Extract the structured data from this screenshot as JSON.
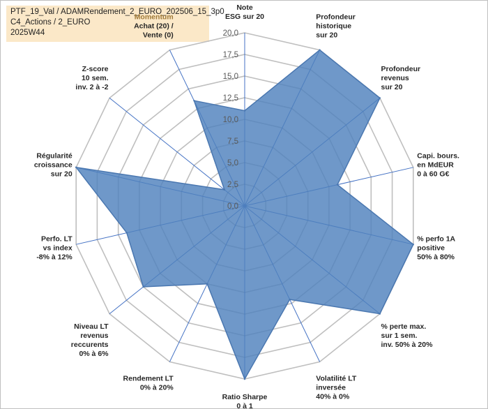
{
  "title_lines": [
    "PTF_19_Val / ADAMRendement_2_EURO_202506_15_3p0",
    "C4_Actions / 2_EURO",
    "2025W44"
  ],
  "colors": {
    "fill": "#4f81bd",
    "axis": "#4472c4",
    "grid": "#bfbfbf",
    "accent_label": "#a07a38"
  },
  "chart_data": {
    "type": "radar",
    "title": "PTF_19_Val / ADAMRendement_2_EURO_202506_15_3p0 — C4_Actions / 2_EURO — 2025W44",
    "rmin": 0,
    "rmax": 20,
    "ticks": [
      "0,0",
      "2,5",
      "5,0",
      "7,5",
      "10,0",
      "12,5",
      "15,0",
      "17,5",
      "20,0"
    ],
    "axes": [
      {
        "name": "axis-note-esg",
        "label": [
          "Note",
          "ESG sur 20"
        ],
        "value": 11.0
      },
      {
        "name": "axis-profondeur-historique",
        "label": [
          "Profondeur",
          "historique",
          "sur 20"
        ],
        "value": 20.0
      },
      {
        "name": "axis-profondeur-revenus",
        "label": [
          "Profondeur",
          "revenus",
          "sur 20"
        ],
        "value": 20.0
      },
      {
        "name": "axis-capi-bours",
        "label": [
          "Capi. bours.",
          "en MdEUR",
          "0 à 60 G€"
        ],
        "value": 11.0
      },
      {
        "name": "axis-perfo-1a",
        "label": [
          "% perfo 1A",
          "positive",
          "50% à 80%"
        ],
        "value": 20.0
      },
      {
        "name": "axis-perte-max",
        "label": [
          "% perte max.",
          "sur 1 sem.",
          "inv. 50% à 20%"
        ],
        "value": 20.0
      },
      {
        "name": "axis-volatilite-lt",
        "label": [
          "Volatilité LT",
          "inversée",
          "40% à 0%"
        ],
        "value": 12.0
      },
      {
        "name": "axis-ratio-sharpe",
        "label": [
          "Ratio Sharpe",
          "0 à 1"
        ],
        "value": 20.0
      },
      {
        "name": "axis-rendement-lt",
        "label": [
          "Rendement LT",
          "0% à 20%"
        ],
        "value": 10.0
      },
      {
        "name": "axis-niveau-lt-revenus",
        "label": [
          "Niveau LT",
          "revenus",
          "reccurents",
          "0% à 6%"
        ],
        "value": 15.0
      },
      {
        "name": "axis-perfo-lt",
        "label": [
          "Perfo. LT",
          "vs index",
          "-8% à 12%"
        ],
        "value": 14.0
      },
      {
        "name": "axis-regularite-croissance",
        "label": [
          "Régularité",
          "croissance",
          "sur 20"
        ],
        "value": 20.0
      },
      {
        "name": "axis-z-score",
        "label": [
          "Z-score",
          "10 sem.",
          "inv. 2 à -2"
        ],
        "value": 3.0
      },
      {
        "name": "axis-momentum",
        "label": [
          "Momentum",
          "Achat (20) /",
          "Vente (0)"
        ],
        "value": 13.5,
        "accent_first_line": true
      }
    ]
  }
}
